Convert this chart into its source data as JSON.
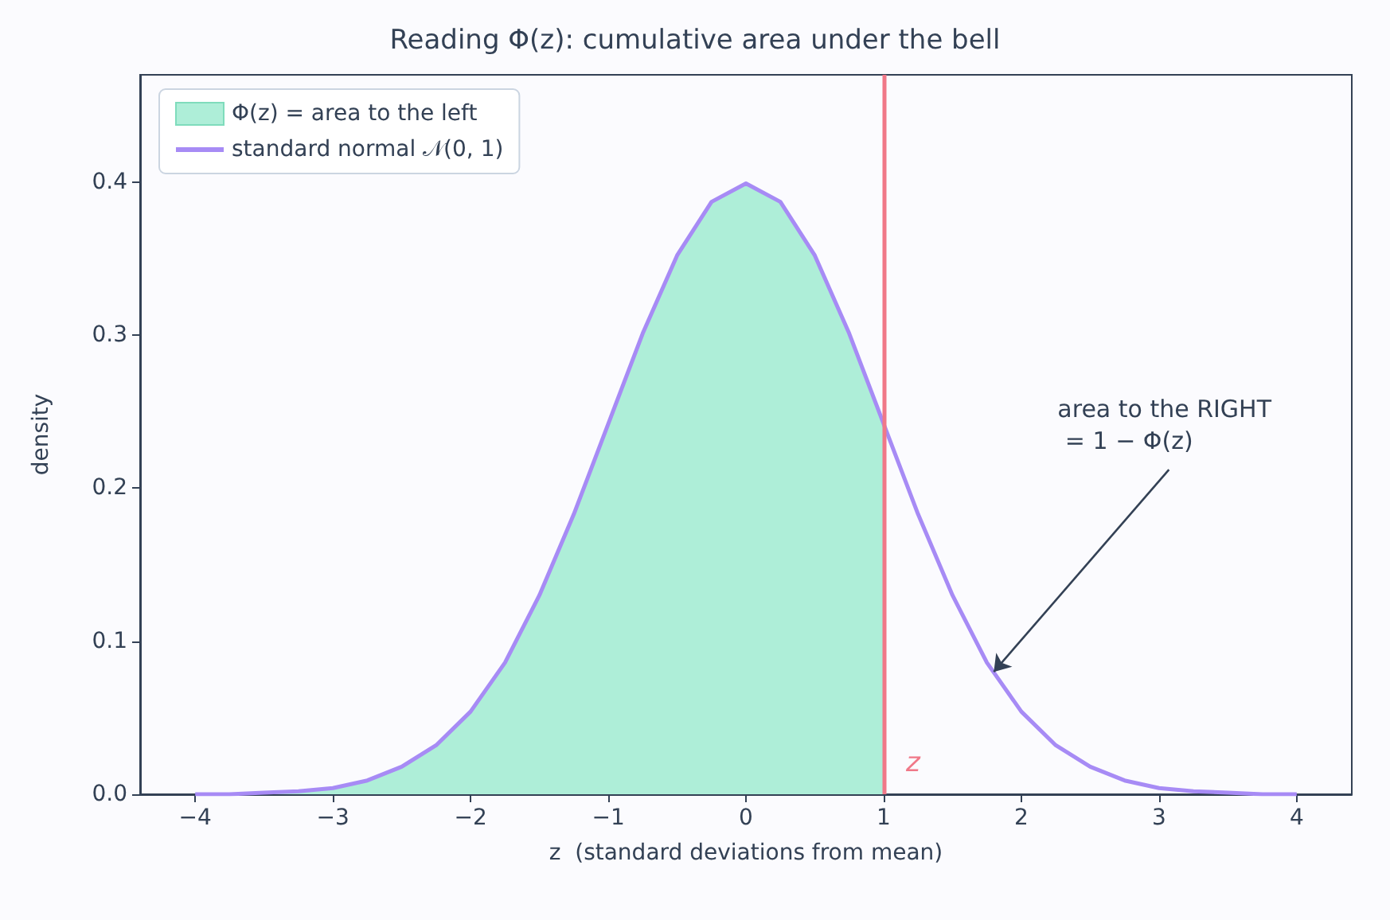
{
  "chart_data": {
    "type": "line",
    "title": "Reading Φ(z): cumulative area under the bell",
    "xlabel": "z  (standard deviations from mean)",
    "ylabel": "density",
    "x": [
      -4,
      -3.75,
      -3.5,
      -3.25,
      -3,
      -2.75,
      -2.5,
      -2.25,
      -2,
      -1.75,
      -1.5,
      -1.25,
      -1,
      -0.75,
      -0.5,
      -0.25,
      0,
      0.25,
      0.5,
      0.75,
      1,
      1.25,
      1.5,
      1.75,
      2,
      2.25,
      2.5,
      2.75,
      3,
      3.25,
      3.5,
      3.75,
      4
    ],
    "series": [
      {
        "type": "area",
        "name": "Φ(z) = area to the left",
        "color": "#aeeed8",
        "x": [
          -4,
          -3.75,
          -3.5,
          -3.25,
          -3,
          -2.75,
          -2.5,
          -2.25,
          -2,
          -1.75,
          -1.5,
          -1.25,
          -1,
          -0.75,
          -0.5,
          -0.25,
          0,
          0.25,
          0.5,
          0.75,
          1
        ],
        "values": [
          0.0,
          0.0,
          0.001,
          0.002,
          0.004,
          0.009,
          0.018,
          0.032,
          0.054,
          0.086,
          0.13,
          0.183,
          0.242,
          0.301,
          0.352,
          0.387,
          0.399,
          0.387,
          0.352,
          0.301,
          0.242
        ]
      },
      {
        "name": "standard normal 𝒩(0, 1)",
        "color": "#a78bf5",
        "values": [
          0.0,
          0.0,
          0.001,
          0.002,
          0.004,
          0.009,
          0.018,
          0.032,
          0.054,
          0.086,
          0.13,
          0.183,
          0.242,
          0.301,
          0.352,
          0.387,
          0.399,
          0.387,
          0.352,
          0.301,
          0.242,
          0.183,
          0.13,
          0.086,
          0.054,
          0.032,
          0.018,
          0.009,
          0.004,
          0.002,
          0.001,
          0.0,
          0.0
        ]
      }
    ],
    "ref_lines": [
      {
        "axis": "x",
        "value": 1,
        "label": "z",
        "color": "#f07888"
      }
    ],
    "annotations": [
      {
        "text": "area to the RIGHT\n = 1 − Φ(z)",
        "x": 1.8,
        "y": 0.08
      }
    ],
    "xlim": [
      -4.4,
      4.4
    ],
    "ylim": [
      0,
      0.47
    ],
    "xticks": [
      {
        "value": -4,
        "label": "−4"
      },
      {
        "value": -3,
        "label": "−3"
      },
      {
        "value": -2,
        "label": "−2"
      },
      {
        "value": -1,
        "label": "−1"
      },
      0,
      1,
      2,
      3,
      4
    ],
    "yticks": [
      {
        "value": 0,
        "label": "0.0"
      },
      0.1,
      0.2,
      0.3,
      0.4
    ],
    "legend": "top left",
    "grid": false,
    "marker": "none",
    "line_style": "solid"
  }
}
